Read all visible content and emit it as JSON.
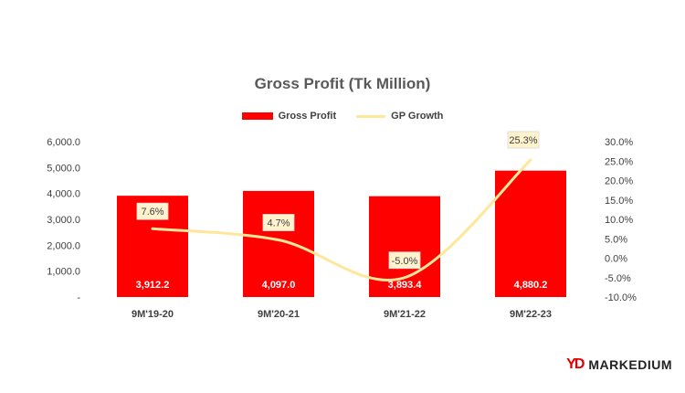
{
  "chart_data": {
    "type": "bar",
    "title": "Gross Profit (Tk Million)",
    "categories": [
      "9M'19-20",
      "9M'20-21",
      "9M'21-22",
      "9M'22-23"
    ],
    "series": [
      {
        "name": "Gross Profit",
        "type": "bar",
        "axis": "left",
        "color": "#ff0000",
        "values": [
          3912.2,
          4097.0,
          3893.4,
          4880.2
        ],
        "labels": [
          "3,912.2",
          "4,097.0",
          "3,893.4",
          "4,880.2"
        ]
      },
      {
        "name": "GP Growth",
        "type": "line",
        "axis": "right",
        "color": "#ffe699",
        "values": [
          7.6,
          4.7,
          -5.0,
          25.3
        ],
        "labels": [
          "7.6%",
          "4.7%",
          "-5.0%",
          "25.3%"
        ]
      }
    ],
    "y_left": {
      "min": 0,
      "max": 6000,
      "ticks": [
        0,
        1000,
        2000,
        3000,
        4000,
        5000,
        6000
      ],
      "tick_labels": [
        "-",
        "1,000.0",
        "2,000.0",
        "3,000.0",
        "4,000.0",
        "5,000.0",
        "6,000.0"
      ]
    },
    "y_right": {
      "min": -10,
      "max": 30,
      "ticks": [
        -10,
        -5,
        0,
        5,
        10,
        15,
        20,
        25,
        30
      ],
      "tick_labels": [
        "-10.0%",
        "-5.0%",
        "0.0%",
        "5.0%",
        "10.0%",
        "15.0%",
        "20.0%",
        "25.0%",
        "30.0%"
      ]
    },
    "grid": false,
    "legend_position": "top-center"
  },
  "brand": {
    "mark": "YD",
    "name": "MARKEDIUM",
    "color": "#e00000"
  }
}
